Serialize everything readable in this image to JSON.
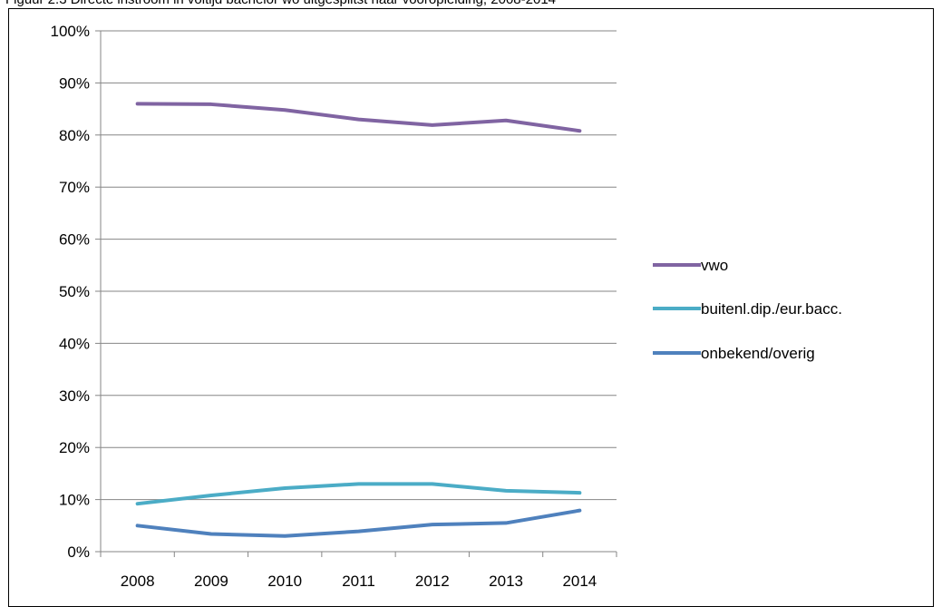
{
  "caption": "Figuur 2.3 Directe instroom in voltijd bachelor wo uitgesplitst naar vooropleiding, 2008-2014",
  "chart_data": {
    "type": "line",
    "title": "",
    "xlabel": "",
    "ylabel": "",
    "categories": [
      "2008",
      "2009",
      "2010",
      "2011",
      "2012",
      "2013",
      "2014"
    ],
    "y_ticks": [
      "0%",
      "10%",
      "20%",
      "30%",
      "40%",
      "50%",
      "60%",
      "70%",
      "80%",
      "90%",
      "100%"
    ],
    "ylim": [
      0,
      100
    ],
    "grid": true,
    "legend_position": "right",
    "series": [
      {
        "name": "vwo",
        "color": "#8064A2",
        "values": [
          86,
          85.9,
          84.8,
          83,
          81.9,
          82.8,
          80.8
        ]
      },
      {
        "name": "buitenl.dip./eur.bacc.",
        "color": "#4BACC6",
        "values": [
          9.2,
          10.8,
          12.2,
          13,
          13,
          11.7,
          11.3
        ]
      },
      {
        "name": "onbekend/overig",
        "color": "#4F81BD",
        "values": [
          5,
          3.4,
          3,
          3.9,
          5.2,
          5.5,
          7.9
        ]
      }
    ]
  }
}
